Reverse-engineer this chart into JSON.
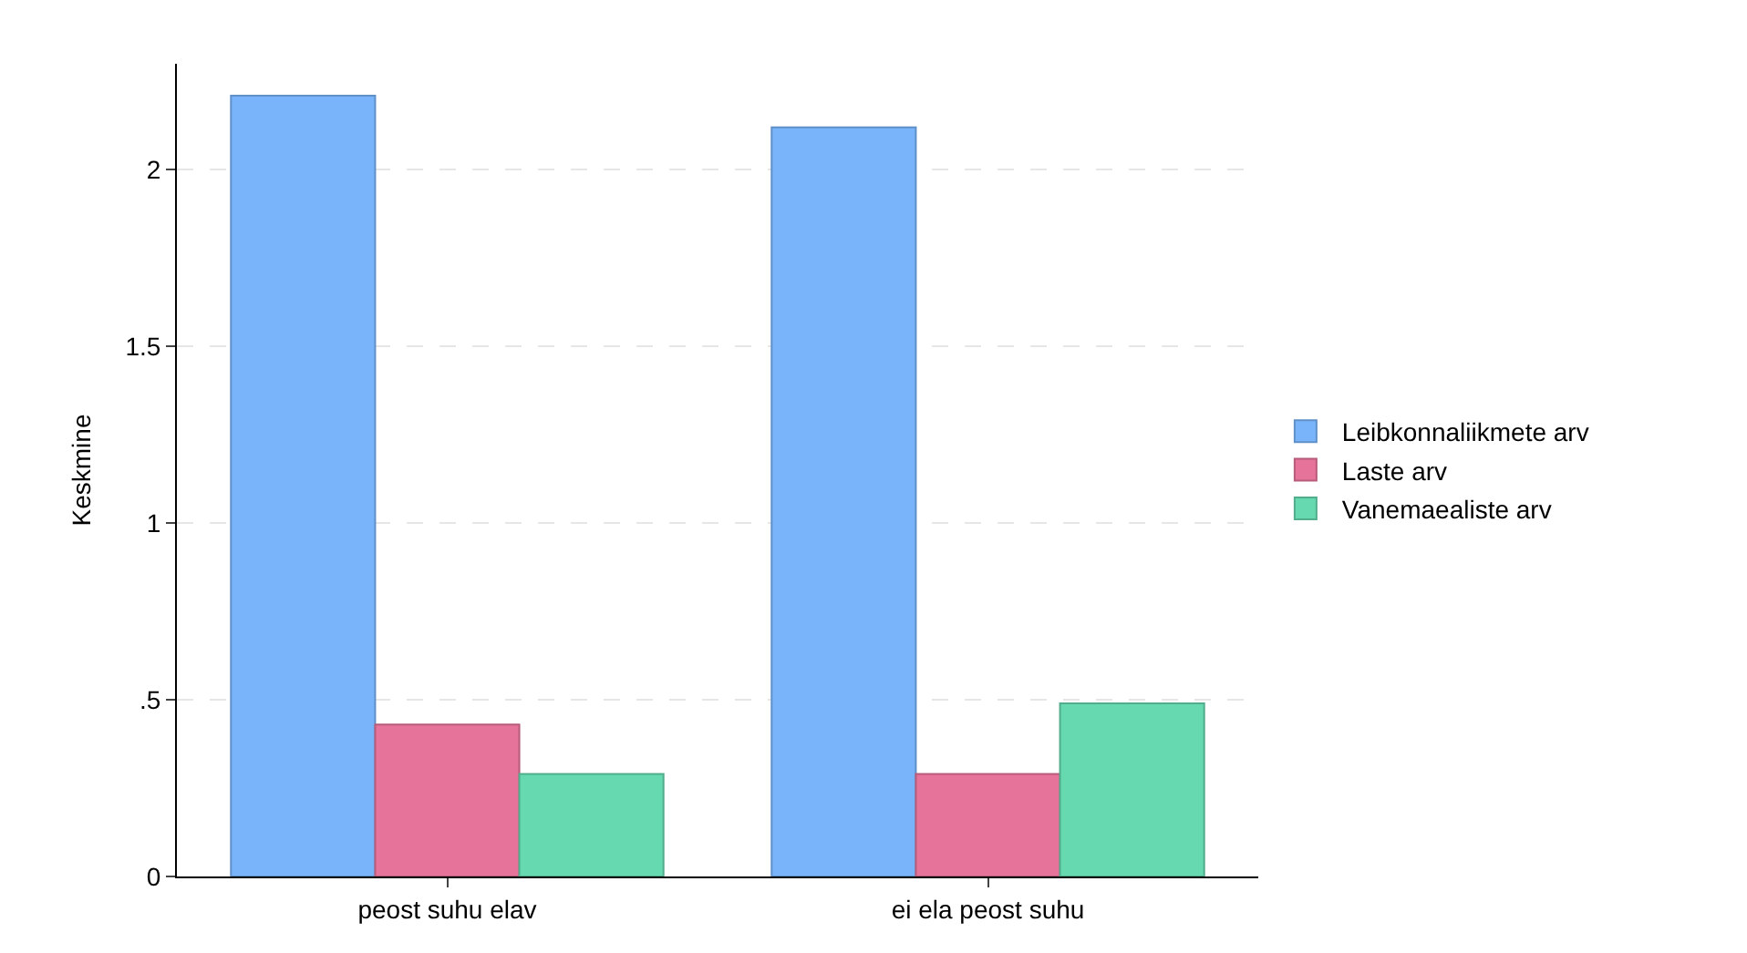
{
  "chart_data": {
    "type": "bar",
    "ylabel": "Keskmine",
    "categories": [
      "peost suhu elav",
      "ei ela peost suhu"
    ],
    "series": [
      {
        "name": "Leibkonnaliikmete arv",
        "color": "#79b4fb",
        "values": [
          2.21,
          2.12
        ]
      },
      {
        "name": "Laste arv",
        "color": "#e5739a",
        "values": [
          0.43,
          0.29
        ]
      },
      {
        "name": "Vanemaealiste arv",
        "color": "#66d9b0",
        "values": [
          0.29,
          0.49
        ]
      }
    ],
    "ylim": [
      0,
      2.3
    ],
    "yticks": [
      0,
      {
        "value": 0.5,
        "label": ".5"
      },
      1,
      1.5,
      2
    ],
    "grid": "y",
    "legend": "right"
  }
}
